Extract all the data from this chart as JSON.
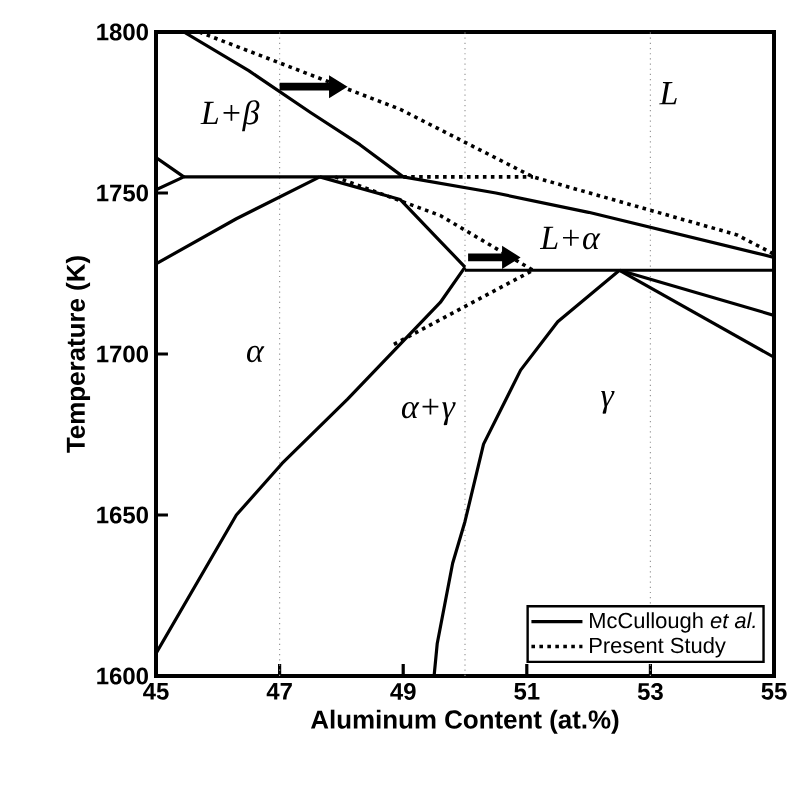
{
  "chart_data": {
    "type": "line",
    "xlabel": "Aluminum Content (at.%)",
    "ylabel": "Temperature (K)",
    "xlim": [
      45,
      55
    ],
    "ylim": [
      1600,
      1800
    ],
    "xticks": [
      45,
      47,
      49,
      51,
      53,
      55
    ],
    "yticks": [
      1600,
      1650,
      1700,
      1750,
      1800
    ],
    "legend": "bottom right",
    "marker": "none",
    "series": [
      {
        "name": "McCullough *et al.*",
        "color": "#000000",
        "line_style": "solid",
        "x": [
          45.45,
          46.5,
          47.5,
          48.3,
          49.0
        ],
        "values": [
          1800,
          1788,
          1775,
          1765,
          1755
        ]
      },
      {
        "color": "#000000",
        "line_style": "solid",
        "x": [
          45.45,
          49.0,
          50.5,
          52,
          53.5,
          55
        ],
        "values": [
          1755,
          1755,
          1750,
          1744,
          1737,
          1730
        ]
      },
      {
        "color": "#000000",
        "line_style": "solid",
        "x": [
          45,
          45.45,
          45
        ],
        "values": [
          1761,
          1755,
          1751
        ]
      },
      {
        "color": "#000000",
        "line_style": "solid",
        "x": [
          45,
          46.3,
          47.65
        ],
        "values": [
          1728,
          1742,
          1755
        ]
      },
      {
        "color": "#000000",
        "line_style": "solid",
        "x": [
          47.65,
          48.95,
          49.6,
          50.0
        ],
        "values": [
          1755,
          1748,
          1735,
          1727
        ]
      },
      {
        "color": "#000000",
        "line_style": "solid",
        "x": [
          45,
          46.3,
          47.04,
          48.1,
          49.6,
          50.0
        ],
        "values": [
          1607,
          1650,
          1666,
          1686,
          1716,
          1727
        ]
      },
      {
        "color": "#000000",
        "line_style": "solid",
        "x": [
          50.0,
          55
        ],
        "values": [
          1726,
          1726
        ]
      },
      {
        "color": "#000000",
        "line_style": "solid",
        "x": [
          49.5,
          49.55,
          49.8,
          50.0,
          50.3,
          50.9,
          51.5,
          52.0,
          52.5
        ],
        "values": [
          1600,
          1610,
          1635,
          1648,
          1672,
          1695,
          1710,
          1718,
          1726
        ]
      },
      {
        "color": "#000000",
        "line_style": "solid",
        "x": [
          52.5,
          55
        ],
        "values": [
          1726,
          1712
        ]
      },
      {
        "color": "#000000",
        "line_style": "solid",
        "x": [
          52.5,
          55
        ],
        "values": [
          1726,
          1699
        ]
      },
      {
        "name": "Present Study",
        "color": "#000000",
        "line_style": "dotted",
        "x": [
          45.7,
          48.95,
          51.1,
          54.4,
          55
        ],
        "values": [
          1800,
          1776,
          1755,
          1737,
          1731
        ]
      },
      {
        "color": "#000000",
        "line_style": "dotted",
        "x": [
          49.0,
          51.1
        ],
        "values": [
          1755,
          1755
        ]
      },
      {
        "color": "#000000",
        "line_style": "dotted",
        "x": [
          47.9,
          49.6,
          51.1
        ],
        "values": [
          1755,
          1743,
          1726
        ]
      },
      {
        "color": "#000000",
        "line_style": "dotted",
        "x": [
          48.85,
          51.1
        ],
        "values": [
          1703,
          1726
        ]
      }
    ],
    "ref_lines": [
      {
        "axis": "x",
        "value": 47,
        "color": "#999999",
        "line_style": "dotted"
      },
      {
        "axis": "x",
        "value": 50,
        "color": "#999999",
        "line_style": "dotted"
      },
      {
        "axis": "x",
        "value": 53,
        "color": "#999999",
        "line_style": "dotted"
      }
    ],
    "annotations": [
      "L+β",
      "L",
      "L+α",
      "α",
      "α+γ",
      "γ"
    ]
  }
}
